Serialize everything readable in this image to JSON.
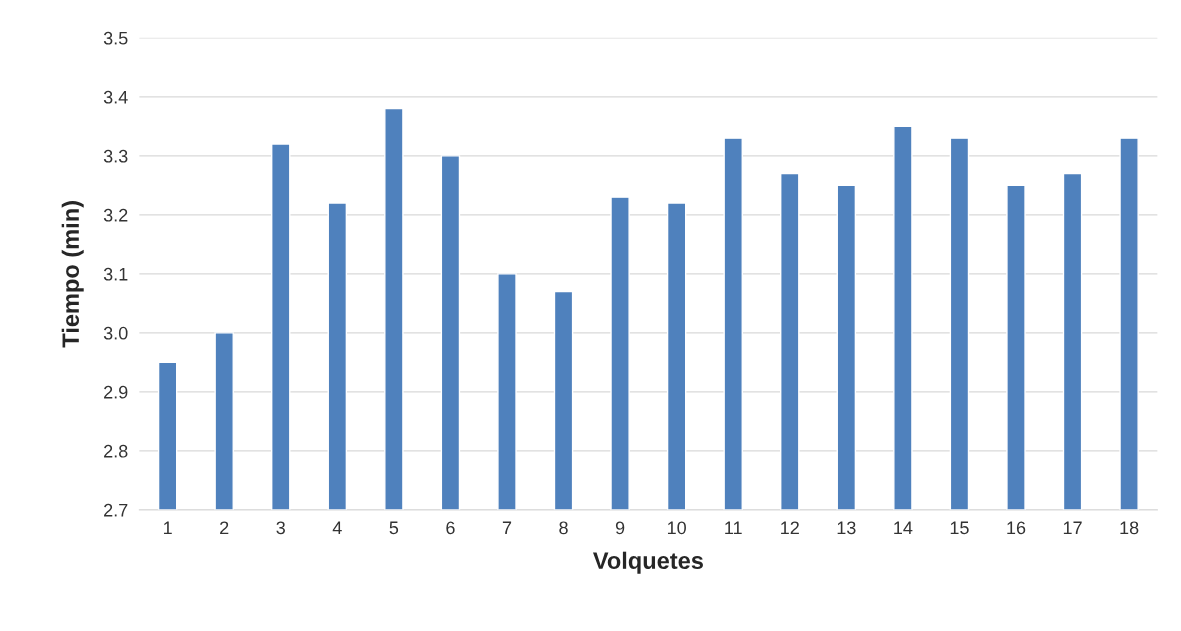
{
  "chart_data": {
    "type": "bar",
    "categories": [
      "1",
      "2",
      "3",
      "4",
      "5",
      "6",
      "7",
      "8",
      "9",
      "10",
      "11",
      "12",
      "13",
      "14",
      "15",
      "16",
      "17",
      "18"
    ],
    "values": [
      2.95,
      3.0,
      3.32,
      3.22,
      3.38,
      3.3,
      3.1,
      3.07,
      3.23,
      3.22,
      3.33,
      3.27,
      3.25,
      3.35,
      3.33,
      3.25,
      3.27,
      3.33
    ],
    "color": "#4f81bd",
    "xlabel": "Volquetes",
    "ylabel": "Tiempo (min)",
    "ylim": [
      2.7,
      3.5
    ],
    "yticks": [
      {
        "value": 2.7,
        "label": "2.7"
      },
      {
        "value": 2.8,
        "label": "2.8"
      },
      {
        "value": 2.9,
        "label": "2.9"
      },
      {
        "value": 3.0,
        "label": "3.0"
      },
      {
        "value": 3.1,
        "label": "3.1"
      },
      {
        "value": 3.2,
        "label": "3.2"
      },
      {
        "value": 3.3,
        "label": "3.3"
      },
      {
        "value": 3.4,
        "label": "3.4"
      },
      {
        "value": 3.5,
        "label": "3.5"
      }
    ],
    "grid": "y"
  }
}
